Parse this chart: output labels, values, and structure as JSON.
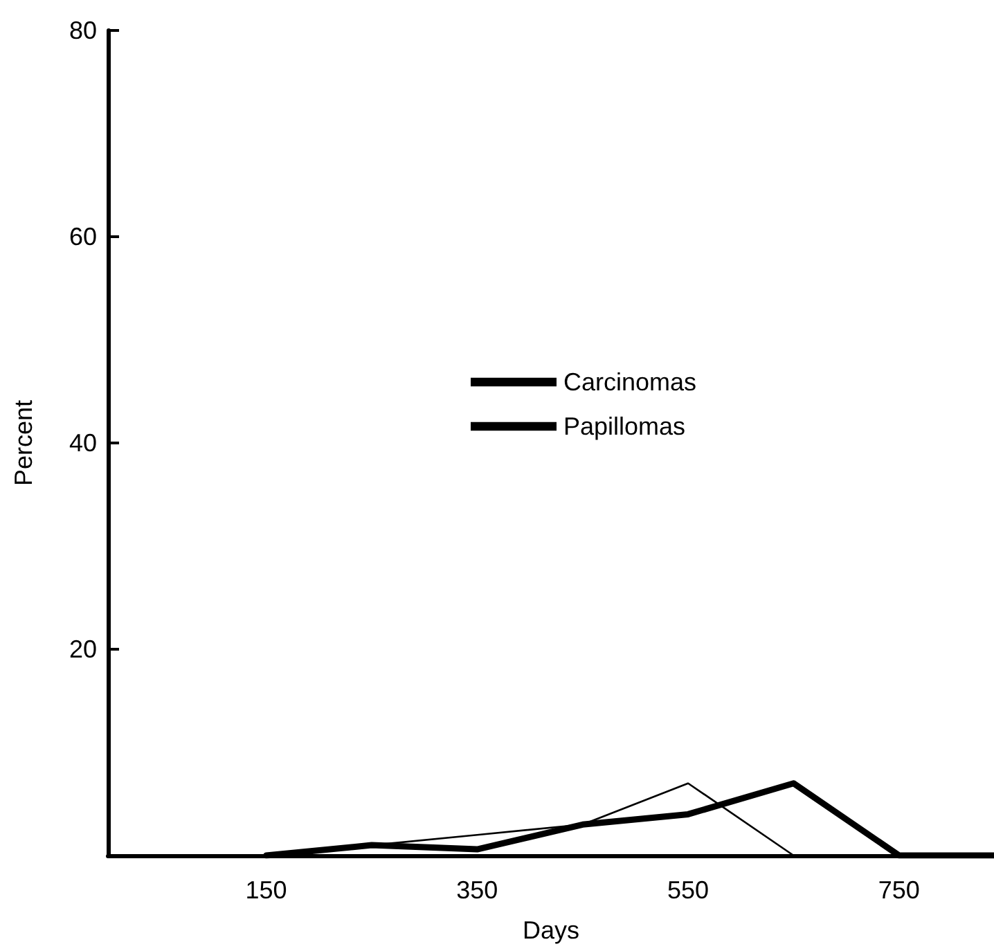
{
  "chart_data": {
    "type": "line",
    "xlabel": "Days",
    "ylabel": "Percent",
    "x": [
      150,
      250,
      350,
      450,
      550,
      650,
      750,
      840
    ],
    "series": [
      {
        "name": "Carcinomas",
        "color": "#000000",
        "values": [
          0,
          1,
          0.6,
          3,
          4,
          7,
          0,
          0
        ]
      },
      {
        "name": "Papillomas",
        "color": "#000000",
        "values": [
          0,
          1,
          2,
          3,
          7,
          0,
          0,
          0
        ]
      }
    ],
    "xlim": [
      0,
      840
    ],
    "xticks": [
      150,
      350,
      550,
      750
    ],
    "ylim": [
      0,
      80
    ],
    "yticks": [
      20,
      40,
      60,
      80
    ],
    "grid": false,
    "legend": "center",
    "marker": "none",
    "line_style": "solid"
  }
}
